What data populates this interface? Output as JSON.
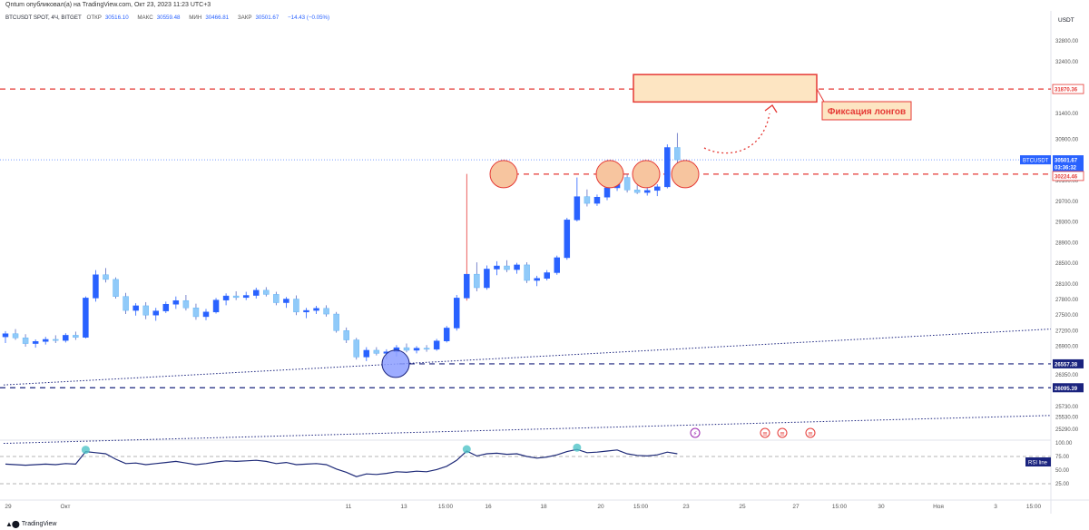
{
  "header": {
    "publish_text": "Qntum опубликовал(а) на TradingView.com, Окт 23, 2023 11:23 UTC+3"
  },
  "legend": {
    "symbol": "BTCUSDT SPOT, 4Ч, BITGET",
    "open_label": "ОТКР",
    "open": "30516.10",
    "high_label": "МАКС",
    "high": "30559.48",
    "low_label": "МИН",
    "low": "30466.81",
    "close_label": "ЗАКР",
    "close": "30501.67",
    "change": "−14.43 (−0.05%)"
  },
  "price_axis": {
    "currency": "USDT",
    "ticks": [
      "32800.00",
      "32400.00",
      "31400.00",
      "30900.00",
      "30100.00",
      "29700.00",
      "29300.00",
      "28900.00",
      "28500.00",
      "28100.00",
      "27800.00",
      "27500.00",
      "27200.00",
      "26900.00",
      "26350.00",
      "25730.00",
      "25530.00",
      "25290.00"
    ],
    "badges": [
      {
        "text": "31870.36",
        "kind": "red"
      },
      {
        "text": "30501.67",
        "kind": "current"
      },
      {
        "text": "03:36:32",
        "kind": "current-sub"
      },
      {
        "text": "30224.46",
        "kind": "red"
      },
      {
        "text": "26557.38",
        "kind": "navy"
      },
      {
        "text": "26095.39",
        "kind": "navy"
      }
    ],
    "symbol_badge": "BTCUSDT"
  },
  "rsi_axis": {
    "ticks": [
      "100.00",
      "75.00",
      "50.00",
      "25.00"
    ],
    "badge": "RSI line"
  },
  "time_axis": {
    "labels": [
      "29",
      "Окт",
      "11",
      "13",
      "15:00",
      "16",
      "18",
      "20",
      "15:00",
      "23",
      "25",
      "27",
      "15:00",
      "30",
      "Ноя",
      "3",
      "15:00"
    ]
  },
  "annotation": {
    "text": "Фиксация лонгов"
  },
  "footer": {
    "logo_text": "TradingView"
  },
  "colors": {
    "up": "#2962ff",
    "down": "#90caf9",
    "red_line": "#e53935",
    "navy_line": "#1a237e",
    "circle_orange": "#f7c59f",
    "circle_blue": "#8c9eff",
    "zone_fill": "#fde5c2",
    "rsi_line": "#1e2a78"
  },
  "chart_data": {
    "type": "candlestick",
    "title": "BTCUSDT SPOT, 4Ч, BITGET",
    "ylabel": "USDT",
    "ylim": [
      25100,
      33100
    ],
    "levels": [
      {
        "price": 31870.36,
        "style": "dashed",
        "color": "red"
      },
      {
        "price": 30224.46,
        "style": "dashed",
        "color": "red"
      },
      {
        "price": 26557.38,
        "style": "dashed",
        "color": "navy"
      },
      {
        "price": 26095.39,
        "style": "dashed",
        "color": "navy"
      }
    ],
    "current_price": 30501.67,
    "candles": [
      [
        0,
        27080,
        27190,
        26960,
        27140
      ],
      [
        1,
        27140,
        27230,
        27020,
        27060
      ],
      [
        2,
        27060,
        27130,
        26890,
        26950
      ],
      [
        3,
        26950,
        27030,
        26870,
        26990
      ],
      [
        4,
        26990,
        27080,
        26930,
        27030
      ],
      [
        5,
        27030,
        27110,
        26960,
        27010
      ],
      [
        6,
        27010,
        27150,
        26970,
        27110
      ],
      [
        7,
        27110,
        27180,
        27020,
        27070
      ],
      [
        8,
        27070,
        27860,
        27050,
        27830
      ],
      [
        9,
        27830,
        28370,
        27760,
        28280
      ],
      [
        10,
        28280,
        28410,
        28130,
        28190
      ],
      [
        11,
        28190,
        28230,
        27820,
        27860
      ],
      [
        12,
        27860,
        27930,
        27520,
        27590
      ],
      [
        13,
        27590,
        27730,
        27490,
        27680
      ],
      [
        14,
        27680,
        27750,
        27420,
        27500
      ],
      [
        15,
        27500,
        27640,
        27390,
        27580
      ],
      [
        16,
        27580,
        27760,
        27540,
        27710
      ],
      [
        17,
        27710,
        27860,
        27620,
        27780
      ],
      [
        18,
        27780,
        27890,
        27590,
        27640
      ],
      [
        19,
        27640,
        27720,
        27410,
        27470
      ],
      [
        20,
        27470,
        27620,
        27400,
        27560
      ],
      [
        21,
        27560,
        27830,
        27530,
        27790
      ],
      [
        22,
        27790,
        27920,
        27690,
        27870
      ],
      [
        23,
        27870,
        27960,
        27790,
        27840
      ],
      [
        24,
        27840,
        27950,
        27790,
        27880
      ],
      [
        25,
        27880,
        28030,
        27820,
        27980
      ],
      [
        26,
        27980,
        28040,
        27860,
        27900
      ],
      [
        27,
        27900,
        27950,
        27690,
        27740
      ],
      [
        28,
        27740,
        27850,
        27640,
        27810
      ],
      [
        29,
        27810,
        27880,
        27500,
        27560
      ],
      [
        30,
        27560,
        27640,
        27440,
        27590
      ],
      [
        31,
        27590,
        27680,
        27520,
        27630
      ],
      [
        32,
        27630,
        27690,
        27470,
        27520
      ],
      [
        33,
        27520,
        27560,
        27160,
        27200
      ],
      [
        34,
        27200,
        27260,
        26960,
        27020
      ],
      [
        35,
        27020,
        27060,
        26640,
        26690
      ],
      [
        36,
        26690,
        26880,
        26610,
        26820
      ],
      [
        37,
        26820,
        26880,
        26720,
        26760
      ],
      [
        38,
        26760,
        26840,
        26650,
        26790
      ],
      [
        39,
        26790,
        26920,
        26700,
        26870
      ],
      [
        40,
        26870,
        26950,
        26780,
        26820
      ],
      [
        41,
        26820,
        26900,
        26760,
        26860
      ],
      [
        42,
        26860,
        26920,
        26790,
        26840
      ],
      [
        43,
        26840,
        27040,
        26810,
        27000
      ],
      [
        44,
        27000,
        27290,
        26970,
        27250
      ],
      [
        45,
        27250,
        27890,
        27200,
        27830
      ],
      [
        46,
        27830,
        30230,
        27780,
        28290
      ],
      [
        47,
        28290,
        28520,
        27960,
        28030
      ],
      [
        48,
        28030,
        28460,
        27990,
        28390
      ],
      [
        49,
        28390,
        28540,
        28270,
        28450
      ],
      [
        50,
        28450,
        28560,
        28330,
        28380
      ],
      [
        51,
        28380,
        28510,
        28300,
        28470
      ],
      [
        52,
        28470,
        28520,
        28120,
        28170
      ],
      [
        53,
        28170,
        28260,
        28060,
        28210
      ],
      [
        54,
        28210,
        28370,
        28170,
        28320
      ],
      [
        55,
        28320,
        28650,
        28280,
        28610
      ],
      [
        56,
        28610,
        29380,
        28570,
        29340
      ],
      [
        57,
        29340,
        30160,
        29310,
        29790
      ],
      [
        58,
        29790,
        29930,
        29600,
        29660
      ],
      [
        59,
        29660,
        29830,
        29610,
        29780
      ],
      [
        60,
        29780,
        30050,
        29720,
        29960
      ],
      [
        61,
        29960,
        30270,
        29900,
        30160
      ],
      [
        62,
        30160,
        30220,
        29870,
        29920
      ],
      [
        63,
        29920,
        30010,
        29840,
        29870
      ],
      [
        64,
        29870,
        29960,
        29810,
        29910
      ],
      [
        65,
        29910,
        30030,
        29800,
        29980
      ],
      [
        66,
        29980,
        30800,
        29950,
        30740
      ],
      [
        67,
        30740,
        31020,
        30450,
        30502
      ]
    ],
    "rsi": {
      "name": "RSI line",
      "ylim": [
        0,
        100
      ],
      "values": [
        61,
        60,
        59,
        60,
        61,
        60,
        62,
        61,
        84,
        82,
        80,
        70,
        62,
        63,
        60,
        62,
        64,
        66,
        63,
        60,
        62,
        65,
        67,
        66,
        67,
        68,
        66,
        62,
        64,
        60,
        61,
        62,
        60,
        52,
        46,
        38,
        43,
        42,
        44,
        47,
        46,
        48,
        47,
        51,
        57,
        68,
        85,
        76,
        80,
        81,
        79,
        80,
        75,
        72,
        74,
        78,
        84,
        88,
        82,
        83,
        85,
        87,
        80,
        77,
        76,
        78,
        83,
        80
      ],
      "levels": [
        75,
        25
      ]
    }
  }
}
